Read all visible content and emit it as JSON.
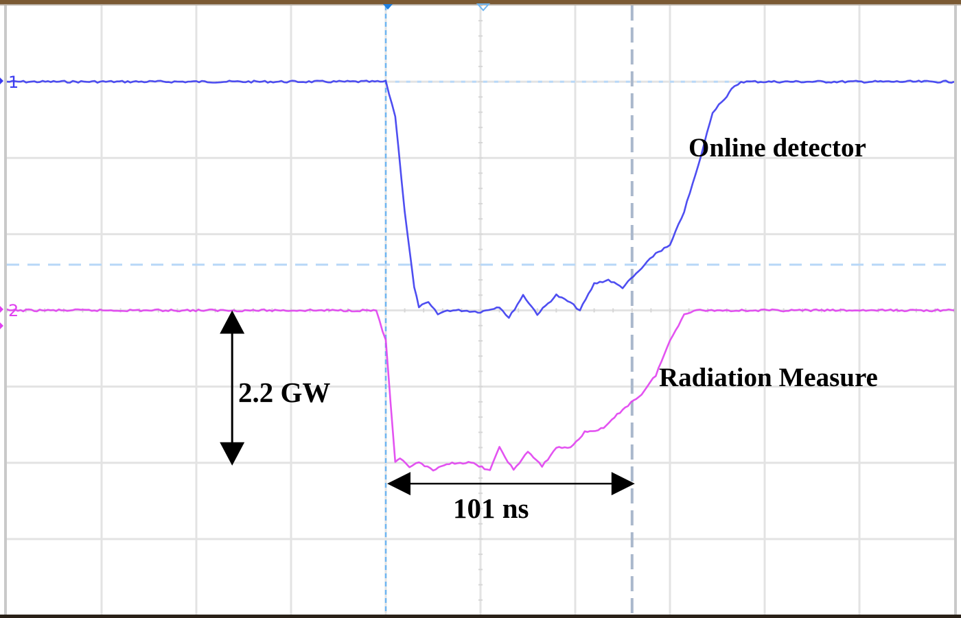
{
  "chart_data": {
    "type": "line",
    "title": "",
    "xlabel": "",
    "ylabel": "",
    "grid": true,
    "grid_divisions": {
      "x": 10,
      "y": 8
    },
    "x_unit": "division",
    "y_unit": "division",
    "xlim": [
      0,
      10
    ],
    "ylim": [
      0,
      8
    ],
    "series": [
      {
        "name": "Online detector",
        "channel_marker": "1",
        "color": "#3b3bf0",
        "x": [
          0,
          4.0,
          4.1,
          4.2,
          4.3,
          4.35,
          4.45,
          4.55,
          4.65,
          4.8,
          5.0,
          5.2,
          5.3,
          5.45,
          5.6,
          5.8,
          5.95,
          6.05,
          6.2,
          6.35,
          6.5,
          6.7,
          6.85,
          7.0,
          7.15,
          7.3,
          7.45,
          7.55,
          7.6,
          7.65,
          7.75,
          7.9,
          8.1,
          10
        ],
        "values": [
          7.0,
          7.0,
          6.55,
          5.3,
          4.3,
          4.05,
          4.1,
          3.95,
          4.0,
          4.0,
          3.98,
          4.05,
          3.9,
          4.2,
          3.95,
          4.2,
          4.1,
          4.0,
          4.35,
          4.4,
          4.3,
          4.55,
          4.75,
          4.85,
          5.3,
          5.9,
          6.6,
          6.75,
          6.8,
          6.9,
          7.0,
          7.0,
          7.0,
          7.0
        ]
      },
      {
        "name": "Radiation Measure",
        "channel_marker": "2",
        "color": "#e040f0",
        "x": [
          0,
          3.9,
          4.0,
          4.05,
          4.1,
          4.15,
          4.25,
          4.35,
          4.5,
          4.7,
          4.9,
          5.1,
          5.2,
          5.35,
          5.5,
          5.65,
          5.8,
          5.95,
          6.1,
          6.3,
          6.5,
          6.7,
          6.85,
          7.0,
          7.15,
          7.25,
          7.35,
          7.5,
          7.7,
          10
        ],
        "values": [
          4.0,
          4.0,
          3.6,
          2.8,
          2.0,
          2.05,
          1.95,
          2.0,
          1.9,
          2.0,
          2.0,
          1.9,
          2.2,
          1.9,
          2.15,
          1.95,
          2.2,
          2.2,
          2.4,
          2.45,
          2.7,
          2.9,
          3.15,
          3.6,
          3.95,
          4.0,
          4.0,
          4.0,
          4.0,
          4.0
        ]
      }
    ],
    "annotations": [
      {
        "text": "Online detector",
        "x": 7.1,
        "y": 6.0
      },
      {
        "text": "Radiation Measure",
        "x": 6.9,
        "y": 3.0
      },
      {
        "text": "2.2 GW",
        "type": "vertical-double-arrow",
        "from_y": 4.0,
        "to_y": 2.0,
        "x": 2.4
      },
      {
        "text": "101 ns",
        "type": "horizontal-double-arrow",
        "from_x": 4.0,
        "to_x": 6.6,
        "y": 1.7
      }
    ],
    "cursors": {
      "vertical": [
        {
          "x": 4.0,
          "color": "#6fb6f2",
          "style": "dotted"
        },
        {
          "x": 6.6,
          "color": "#aab8cc",
          "style": "dashed"
        }
      ],
      "horizontal": [
        {
          "y": 7.0,
          "color": "#b7d7f7",
          "style": "dotted",
          "from_x": 4.1
        },
        {
          "y": 4.6,
          "color": "#b7d7f7",
          "style": "dashed"
        }
      ]
    }
  },
  "labels": {
    "online_detector": "Online detector",
    "radiation_measure": "Radiation Measure",
    "amplitude": "2.2 GW",
    "duration": "101 ns",
    "ch1_marker": "1",
    "ch2_marker": "2"
  },
  "colors": {
    "frame": "#7b5a34",
    "grid": "#e3e3e3",
    "ch1": "#3b3bf0",
    "ch2": "#e040f0",
    "cursor_blue": "#6fb6f2",
    "cursor_grey": "#aab8cc"
  }
}
